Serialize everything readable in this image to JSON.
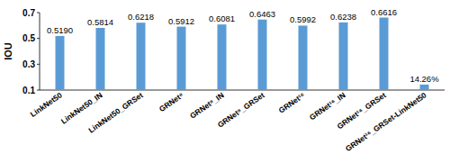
{
  "chart_data": {
    "type": "bar",
    "y_label": "IOU",
    "categories": [
      "LinkNet50",
      "LinkNet50_IN",
      "LinkNet50_GRSet",
      "GRNet⁸",
      "GRNet⁸_IN",
      "GRNet⁸_GRSet",
      "GRNet¹⁶",
      "GRNet¹⁶_IN",
      "GRNet¹⁶_GRSet",
      "GRNet¹⁶_GRSet-LinkNet50"
    ],
    "values": [
      0.519,
      0.5814,
      0.6218,
      0.5912,
      0.6081,
      0.6463,
      0.5992,
      0.6238,
      0.6616,
      0.1426
    ],
    "value_labels": [
      "0.5190",
      "0.5814",
      "0.6218",
      "0.5912",
      "0.6081",
      "0.6463",
      "0.5992",
      "0.6238",
      "0.6616",
      "14.26%"
    ],
    "color": "#5b9bd5",
    "ylim": [
      0.1,
      0.7
    ],
    "yticks": [
      0.1,
      0.3,
      0.5,
      0.7
    ],
    "grid": false,
    "data_labels": true
  }
}
